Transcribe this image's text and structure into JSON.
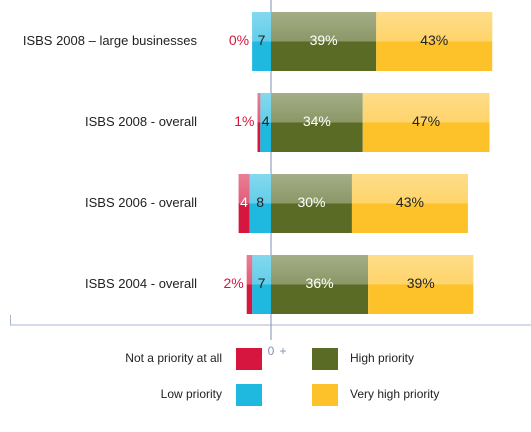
{
  "chart_data": {
    "type": "diverging_bar",
    "categories": [
      "ISBS 2008 – large businesses",
      "ISBS 2008 - overall",
      "ISBS 2006 - overall",
      "ISBS 2004 - overall"
    ],
    "series": [
      {
        "name": "Not a priority at all",
        "color": "#d6163f",
        "side": "negative",
        "values": [
          0,
          1,
          4,
          2
        ],
        "value_labels": [
          "0%",
          "1%",
          "4",
          "2%"
        ]
      },
      {
        "name": "Low priority",
        "color": "#1fb9e0",
        "side": "negative",
        "values": [
          7,
          4,
          8,
          7
        ]
      },
      {
        "name": "High priority",
        "color": "#5a6b25",
        "side": "positive",
        "values": [
          39,
          34,
          30,
          36
        ],
        "value_labels": [
          "39%",
          "34%",
          "30%",
          "36%"
        ]
      },
      {
        "name": "Very high priority",
        "color": "#fdc12a",
        "side": "positive",
        "values": [
          43,
          47,
          43,
          39
        ],
        "value_labels": [
          "43%",
          "47%",
          "43%",
          "39%"
        ]
      }
    ],
    "xlim": [
      -96,
      96
    ],
    "xticks": [
      0
    ],
    "x_sign_labels": [
      "–",
      "+"
    ]
  }
}
